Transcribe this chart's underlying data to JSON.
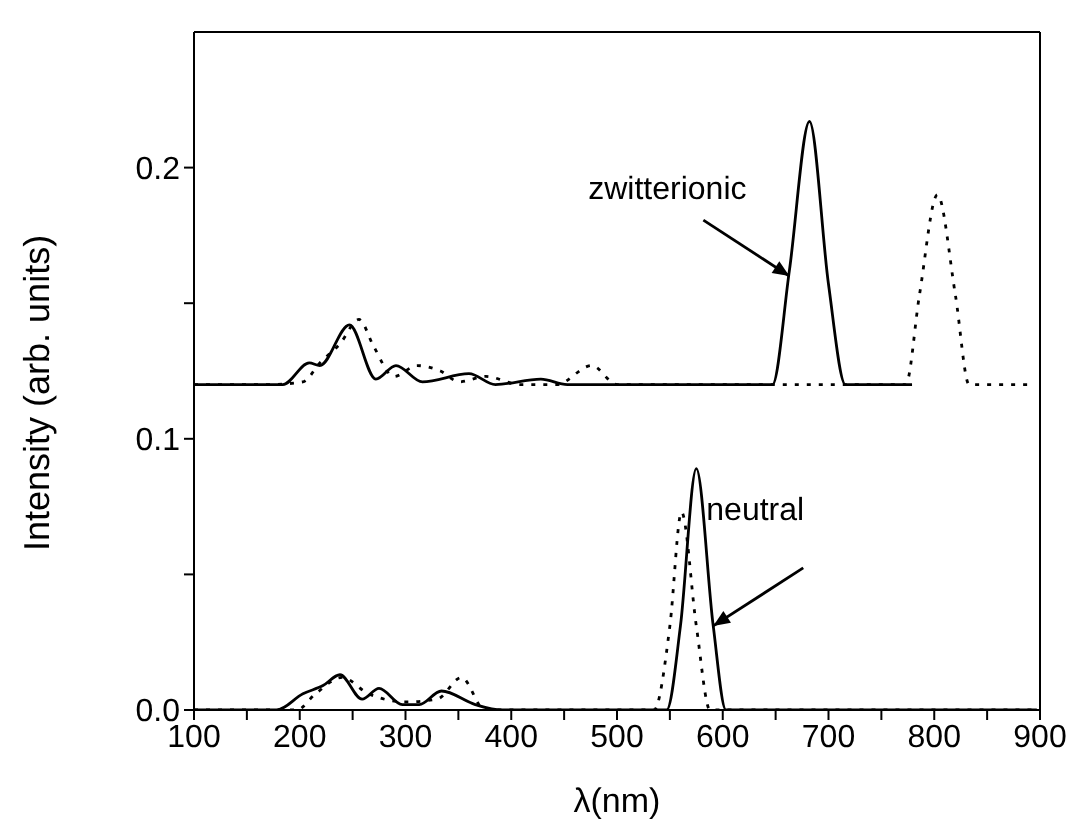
{
  "chart_data": {
    "type": "line",
    "xlabel": "λ(nm)",
    "ylabel": "Intensity (arb. units)",
    "xlim": [
      100,
      900
    ],
    "xticks": [
      100,
      {
        "value": 150,
        "label": null
      },
      200,
      {
        "value": 250,
        "label": null
      },
      300,
      {
        "value": 350,
        "label": null
      },
      400,
      {
        "value": 450,
        "label": null
      },
      500,
      {
        "value": 550,
        "label": null
      },
      600,
      {
        "value": 650,
        "label": null
      },
      700,
      {
        "value": 750,
        "label": null
      },
      800,
      {
        "value": 850,
        "label": null
      },
      900
    ],
    "ylim": [
      0,
      0.25
    ],
    "yticks": [
      {
        "value": 0,
        "label": "0.0"
      },
      {
        "value": 0.05,
        "label": null
      },
      0.1,
      {
        "value": 0.15,
        "label": null
      },
      0.2
    ],
    "series": [
      {
        "color": "#000000",
        "line_style": "solid",
        "x": [
          100,
          184,
          209,
          219,
          247,
          272,
          291,
          316,
          360,
          385,
          428,
          453,
          647,
          663,
          682,
          700,
          716,
          779
        ],
        "values": [
          0.12,
          0.12,
          0.128,
          0.127,
          0.142,
          0.122,
          0.127,
          0.121,
          0.124,
          0.12,
          0.122,
          0.12,
          0.12,
          0.162,
          0.217,
          0.157,
          0.12,
          0.12
        ]
      },
      {
        "color": "#000000",
        "line_style": "dotted",
        "x": [
          100,
          170,
          203,
          219,
          238,
          256,
          270,
          289,
          311,
          333,
          351,
          376,
          408,
          443,
          476,
          500,
          773,
          786,
          803,
          820,
          833,
          892
        ],
        "values": [
          0.12,
          0.12,
          0.121,
          0.128,
          0.135,
          0.144,
          0.134,
          0.123,
          0.127,
          0.125,
          0.121,
          0.123,
          0.12,
          0.12,
          0.127,
          0.12,
          0.12,
          0.153,
          0.19,
          0.153,
          0.12,
          0.12
        ]
      },
      {
        "color": "#000000",
        "line_style": "solid",
        "x": [
          100,
          178,
          203,
          222,
          238,
          259,
          275,
          297,
          313,
          334,
          366,
          391,
          547,
          560,
          575,
          591,
          603,
          897
        ],
        "values": [
          0,
          0,
          0.006,
          0.009,
          0.013,
          0.004,
          0.008,
          0.002,
          0.002,
          0.007,
          0.002,
          0,
          0,
          0.031,
          0.089,
          0.031,
          0,
          0
        ]
      },
      {
        "color": "#000000",
        "line_style": "dotted",
        "x": [
          100,
          197,
          215,
          240,
          265,
          300,
          330,
          353,
          375,
          535,
          550,
          561,
          575,
          588,
          900
        ],
        "values": [
          0,
          0,
          0.006,
          0.012,
          0.006,
          0.003,
          0.004,
          0.012,
          0,
          0,
          0.031,
          0.073,
          0.031,
          0,
          0
        ]
      }
    ],
    "annotations": [
      {
        "text": "zwitterionic",
        "x": 663,
        "y": 0.16
      },
      {
        "text": "neutral",
        "x": 591,
        "y": 0.031
      }
    ]
  }
}
